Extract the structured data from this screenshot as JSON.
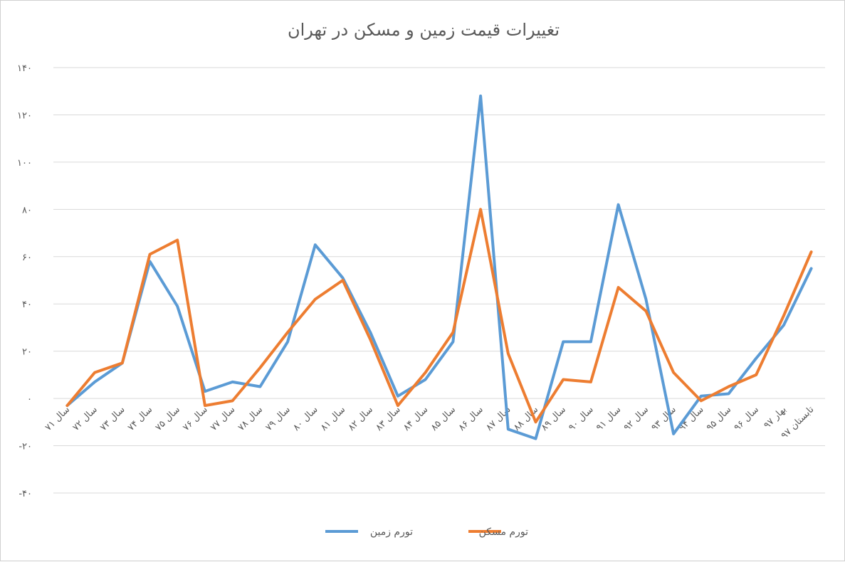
{
  "chart_data": {
    "type": "line",
    "title": "تغییرات قیمت زمین و مسکن در تهران",
    "xlabel": "",
    "ylabel": "",
    "ylim": [
      -40,
      140
    ],
    "yticks": [
      -40,
      -20,
      0,
      20,
      40,
      60,
      80,
      100,
      120,
      140
    ],
    "ytick_labels": [
      "-۴۰",
      "-۲۰",
      "۰",
      "۲۰",
      "۴۰",
      "۶۰",
      "۸۰",
      "۱۰۰",
      "۱۲۰",
      "۱۴۰"
    ],
    "grid": true,
    "legend_position": "bottom",
    "categories": [
      "سال ۷۱",
      "سال ۷۲",
      "سال ۷۳",
      "سال ۷۴",
      "سال ۷۵",
      "سال ۷۶",
      "سال ۷۷",
      "سال ۷۸",
      "سال ۷۹",
      "سال ۸۰",
      "سال ۸۱",
      "سال ۸۲",
      "سال ۸۳",
      "سال ۸۴",
      "سال ۸۵",
      "سال ۸۶",
      "سال ۸۷",
      "سال ۸۸",
      "سال ۸۹",
      "سال ۹۰",
      "سال ۹۱",
      "سال ۹۲",
      "سال ۹۳",
      "سال ۹۴",
      "سال ۹۵",
      "سال ۹۶",
      "بهار ۹۷",
      "تابستان ۹۷"
    ],
    "series": [
      {
        "name": "تورم زمین",
        "color": "#5B9BD5",
        "values": [
          -3,
          7,
          15,
          58,
          39,
          3,
          7,
          5,
          24,
          65,
          51,
          28,
          1,
          8,
          24,
          128,
          -13,
          -17,
          24,
          24,
          82,
          42,
          -15,
          1,
          2,
          17,
          31,
          55
        ]
      },
      {
        "name": "تورم مسکن",
        "color": "#ED7D31",
        "values": [
          -3,
          11,
          15,
          61,
          67,
          -3,
          -1,
          13,
          28,
          42,
          50,
          25,
          -3,
          11,
          28,
          80,
          19,
          -10,
          8,
          7,
          47,
          37,
          11,
          -1,
          5,
          10,
          35,
          62
        ]
      }
    ]
  }
}
